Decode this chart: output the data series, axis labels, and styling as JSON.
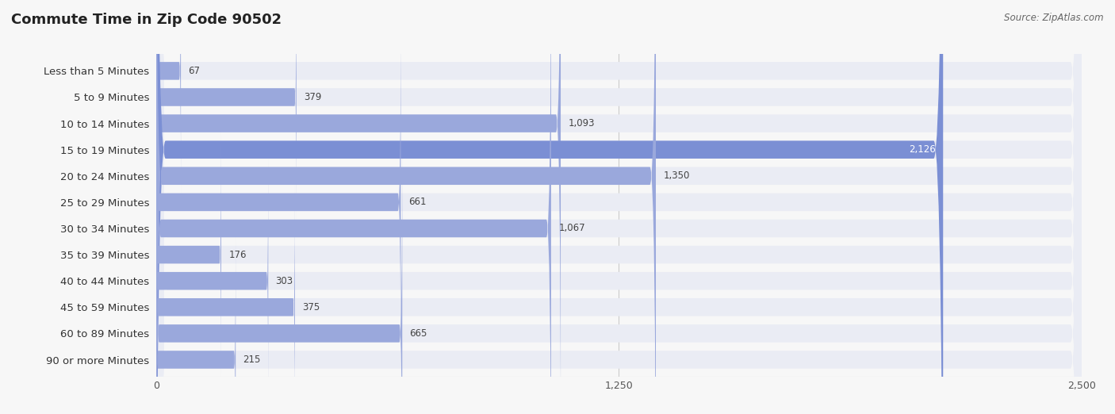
{
  "title": "Commute Time in Zip Code 90502",
  "source": "Source: ZipAtlas.com",
  "categories": [
    "Less than 5 Minutes",
    "5 to 9 Minutes",
    "10 to 14 Minutes",
    "15 to 19 Minutes",
    "20 to 24 Minutes",
    "25 to 29 Minutes",
    "30 to 34 Minutes",
    "35 to 39 Minutes",
    "40 to 44 Minutes",
    "45 to 59 Minutes",
    "60 to 89 Minutes",
    "90 or more Minutes"
  ],
  "values": [
    67,
    379,
    1093,
    2126,
    1350,
    661,
    1067,
    176,
    303,
    375,
    665,
    215
  ],
  "xlim": [
    0,
    2500
  ],
  "xticks": [
    0,
    1250,
    2500
  ],
  "bar_color": "#9aa8dc",
  "bar_bg_color": "#eaecf4",
  "highlight_index": 3,
  "highlight_color": "#7b8fd4",
  "background_color": "#f7f7f7",
  "title_fontsize": 13,
  "label_fontsize": 9.5,
  "value_fontsize": 8.5,
  "tick_fontsize": 9,
  "source_fontsize": 8.5,
  "title_color": "#222222",
  "label_color": "#333333",
  "value_color_inside": "#ffffff",
  "value_color_outside": "#444444",
  "grid_color": "#cccccc"
}
